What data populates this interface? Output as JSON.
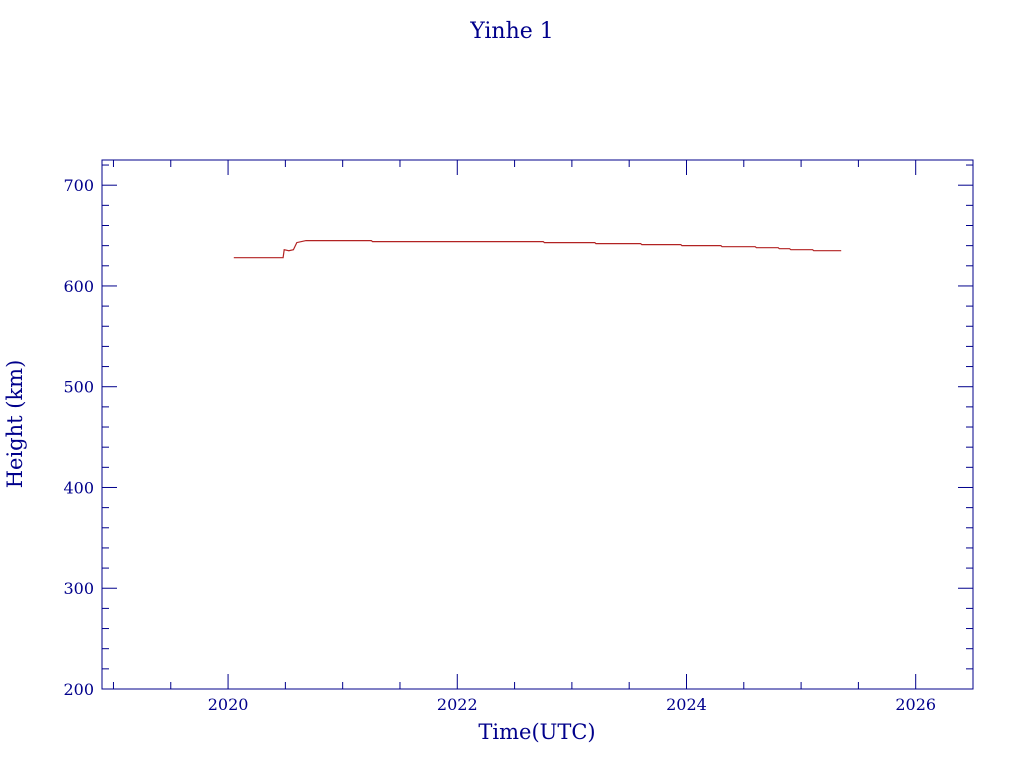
{
  "chart_data": {
    "type": "line",
    "title": "Yinhe 1",
    "xlabel": "Time(UTC)",
    "ylabel": "Height (km)",
    "xlim": [
      2018.9,
      2026.5
    ],
    "ylim": [
      200,
      725
    ],
    "x_ticks": [
      2020,
      2022,
      2024,
      2026
    ],
    "y_ticks": [
      200,
      300,
      400,
      500,
      600,
      700
    ],
    "grid": false,
    "colors": {
      "axis": "#00008B",
      "line": "#B22222"
    },
    "series": [
      {
        "values": [
          [
            2020.05,
            628
          ],
          [
            2020.48,
            628
          ],
          [
            2020.49,
            636
          ],
          [
            2020.53,
            635
          ],
          [
            2020.57,
            636
          ],
          [
            2020.6,
            643
          ],
          [
            2020.68,
            645
          ],
          [
            2021.25,
            645
          ],
          [
            2021.26,
            644
          ],
          [
            2022.75,
            644
          ],
          [
            2022.76,
            643
          ],
          [
            2023.2,
            643
          ],
          [
            2023.21,
            642
          ],
          [
            2023.6,
            642
          ],
          [
            2023.61,
            641
          ],
          [
            2023.95,
            641
          ],
          [
            2023.96,
            640
          ],
          [
            2024.3,
            640
          ],
          [
            2024.31,
            639
          ],
          [
            2024.6,
            639
          ],
          [
            2024.61,
            638
          ],
          [
            2024.8,
            638
          ],
          [
            2024.81,
            637
          ],
          [
            2024.9,
            637
          ],
          [
            2024.91,
            636
          ],
          [
            2025.1,
            636
          ],
          [
            2025.11,
            635
          ],
          [
            2025.35,
            635
          ]
        ]
      }
    ]
  }
}
